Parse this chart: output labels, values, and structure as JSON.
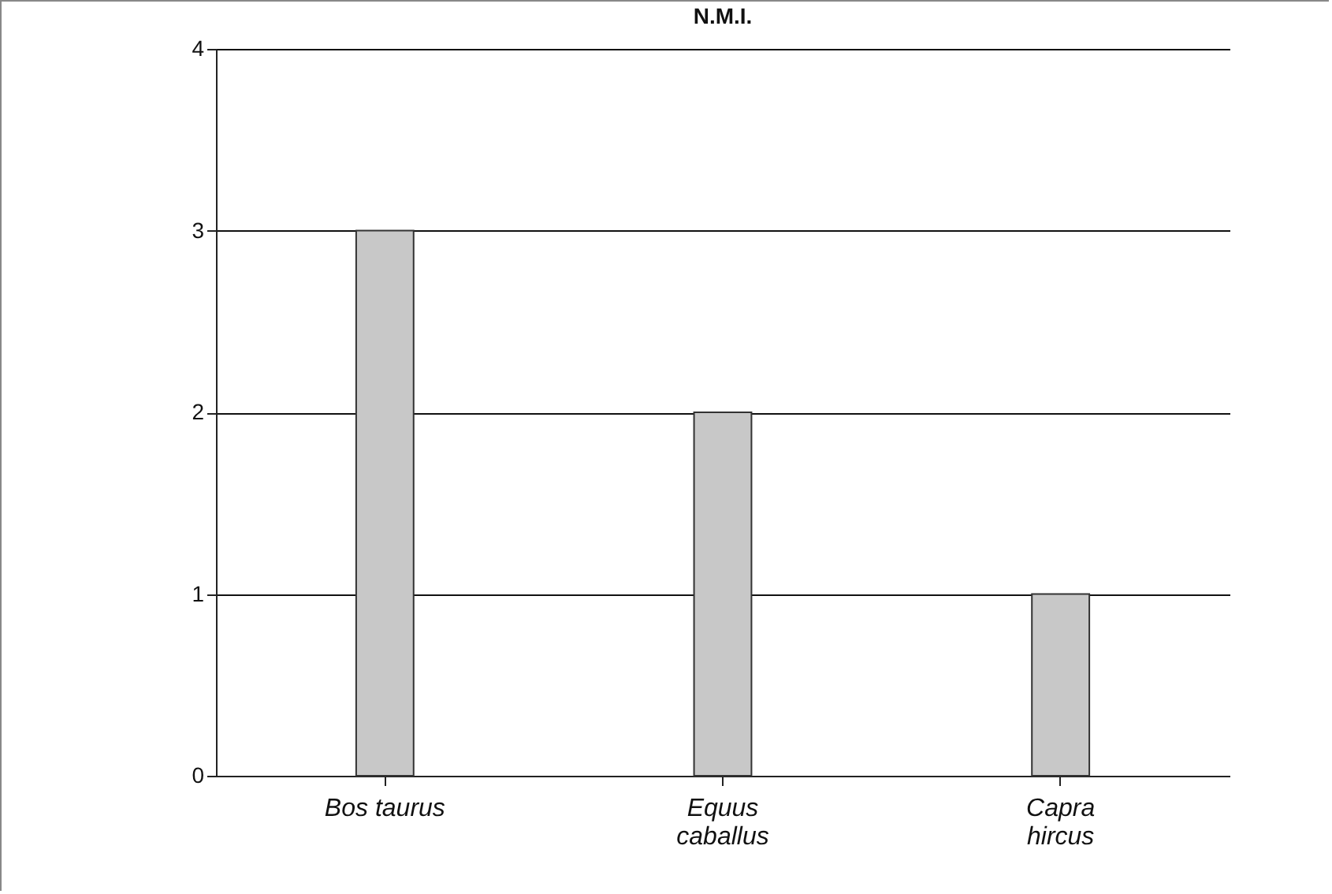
{
  "chart_data": {
    "type": "bar",
    "title": "N.M.I.",
    "categories": [
      "Bos taurus",
      "Equus caballus",
      "Capra hircus"
    ],
    "values": [
      3,
      2,
      1
    ],
    "color": "#c8c8c8",
    "ylim": [
      0,
      4
    ],
    "yticks": [
      0,
      1,
      2,
      3,
      4
    ],
    "grid": "y"
  }
}
